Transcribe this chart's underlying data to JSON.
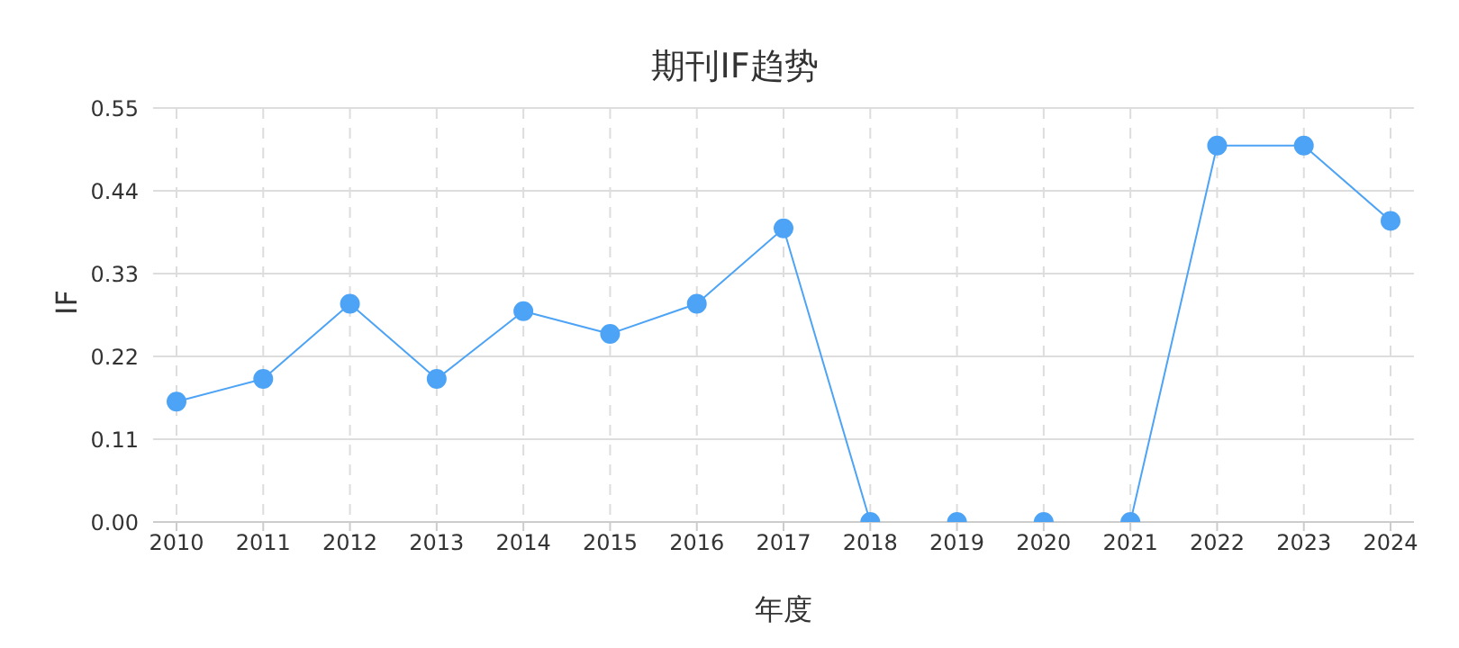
{
  "chart_data": {
    "type": "line",
    "title": "期刊IF趋势",
    "xlabel": "年度",
    "ylabel": "IF",
    "categories": [
      "2010",
      "2011",
      "2012",
      "2013",
      "2014",
      "2015",
      "2016",
      "2017",
      "2018",
      "2019",
      "2020",
      "2021",
      "2022",
      "2023",
      "2024"
    ],
    "series": [
      {
        "color": "#4da3f5",
        "values": [
          0.16,
          0.19,
          0.29,
          0.19,
          0.28,
          0.25,
          0.29,
          0.39,
          0,
          0,
          0,
          0,
          0.5,
          0.5,
          0.4
        ]
      }
    ],
    "ylim": [
      0,
      0.55
    ],
    "yticks": [
      {
        "value": 0,
        "label": "0.00"
      },
      0.11,
      0.22,
      0.33,
      0.44,
      0.55
    ],
    "grid": true,
    "marker": "circle",
    "line_style": "solid"
  }
}
